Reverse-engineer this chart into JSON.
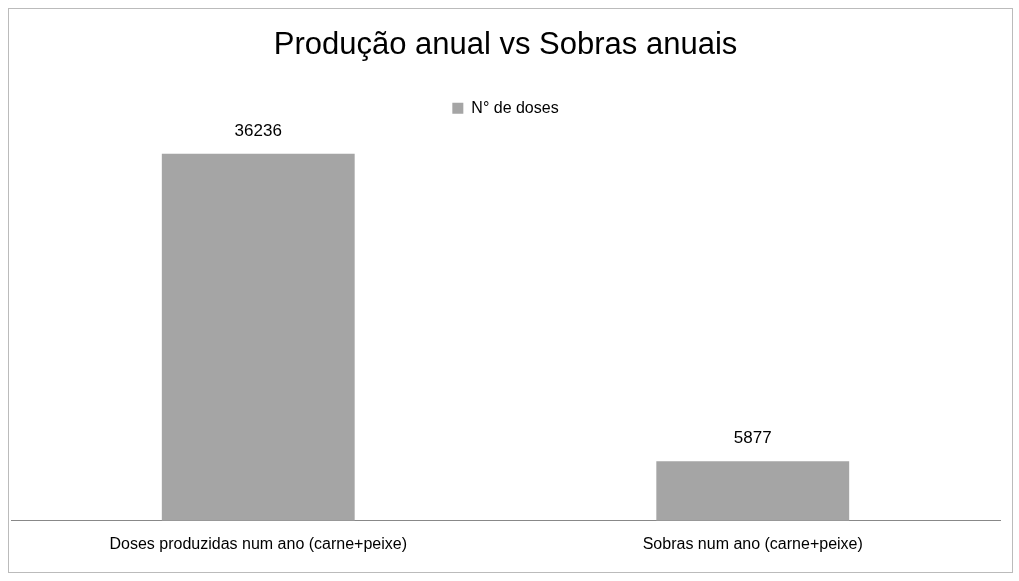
{
  "chart_data": {
    "type": "bar",
    "title": "Produção anual vs Sobras anuais",
    "categories": [
      "Doses produzidas num ano (carne+peixe)",
      "Sobras num ano (carne+peixe)"
    ],
    "series": [
      {
        "name": "N° de doses",
        "color": "#a5a5a5",
        "values": [
          36236,
          5877
        ]
      }
    ],
    "data_labels": true,
    "legend": "top",
    "grid": false
  }
}
